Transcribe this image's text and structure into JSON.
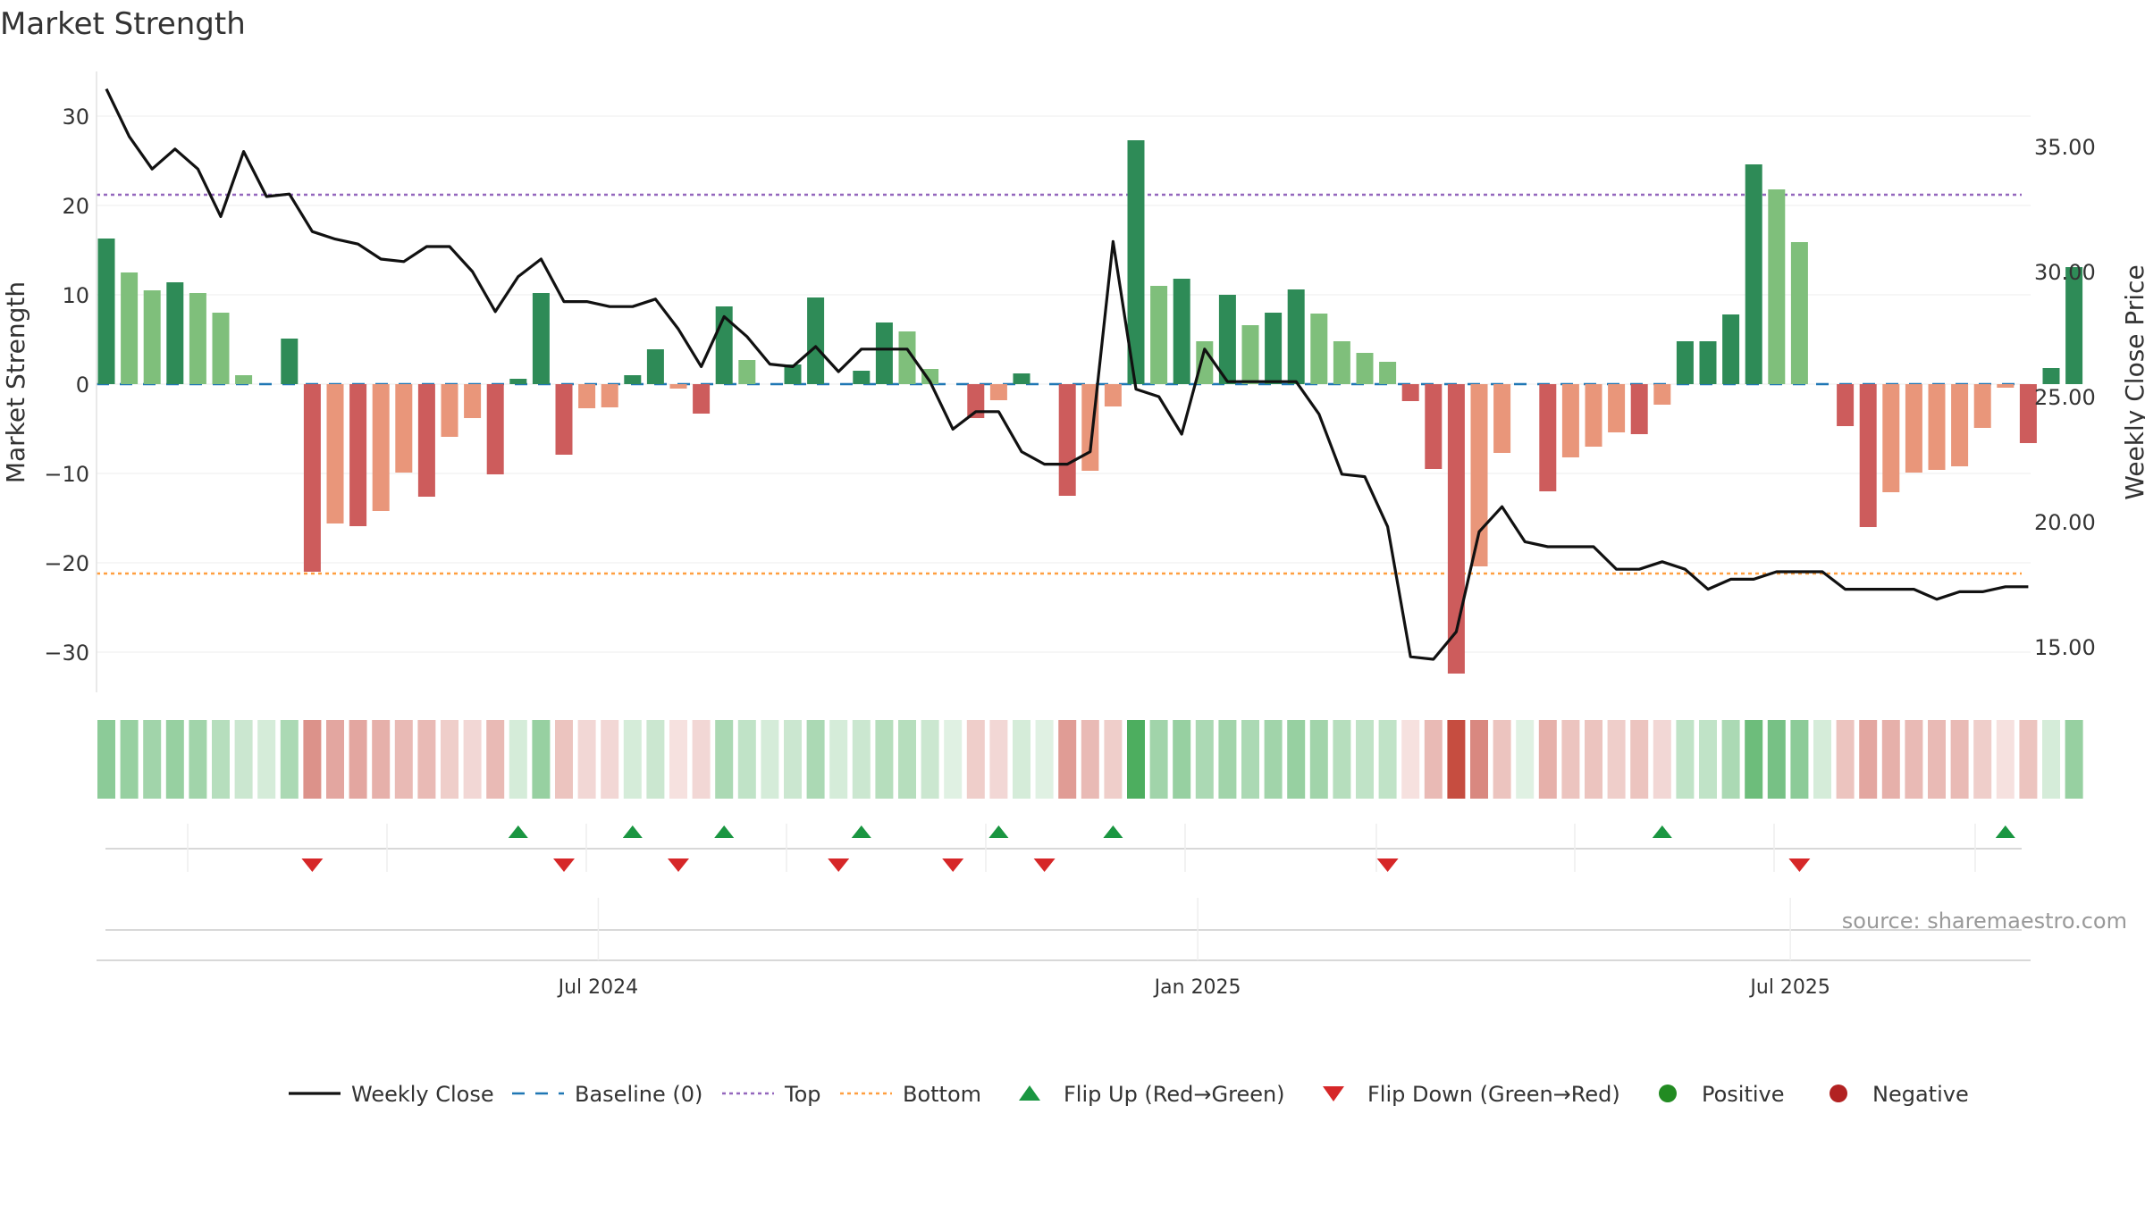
{
  "chart_data": {
    "type": "bar",
    "title": "Market Strength",
    "source": "source: sharemaestro.com",
    "y_left_label": "Market Strength",
    "y_right_label": "Weekly Close Price",
    "y_left_range": [
      -35,
      35
    ],
    "y_left_ticks": [
      30,
      20,
      10,
      0,
      -10,
      -20,
      -30
    ],
    "y_left_tick_labels": [
      "30",
      "20",
      "10",
      "0",
      "−10",
      "−20",
      "−30"
    ],
    "y_right_range": [
      13,
      38
    ],
    "y_right_ticks": [
      15,
      20,
      25,
      30,
      35
    ],
    "y_right_tick_labels": [
      "15.00",
      "20.00",
      "25.00",
      "30.00",
      "35.00"
    ],
    "x_tick_labels": [
      "Jul 2024",
      "Jan 2025",
      "Jul 2025"
    ],
    "x_tick_weeks": [
      21.5,
      47.7,
      73.6
    ],
    "top_level": 21.2,
    "bottom_level": -21.2,
    "colors": {
      "strong_positive": "#2e8b57",
      "positive": "#7fbf7b",
      "strong_negative": "#cd5c5c",
      "negative": "#e9967a",
      "line": "#111111",
      "baseline": "#1f77b4",
      "top": "#9467bd",
      "bottom": "#ff9f40",
      "flip_up": "#1a9641",
      "flip_down": "#d62728",
      "positive_dot": "#228b22",
      "negative_dot": "#b22222"
    },
    "strength": [
      16.3,
      12.5,
      10.5,
      11.4,
      10.2,
      8.0,
      1.0,
      0,
      5.1,
      -21.0,
      -15.6,
      -15.9,
      -14.2,
      -9.9,
      -12.6,
      -5.9,
      -3.8,
      -10.1,
      0.6,
      10.2,
      -7.9,
      -2.7,
      -2.6,
      1.0,
      3.9,
      -0.5,
      -3.3,
      8.7,
      2.7,
      0,
      2.2,
      9.7,
      0,
      1.5,
      6.9,
      5.9,
      1.7,
      0,
      -3.8,
      -1.8,
      1.2,
      0,
      -12.5,
      -9.7,
      -2.5,
      27.3,
      11.0,
      11.8,
      4.8,
      10.0,
      6.6,
      8.0,
      10.6,
      7.9,
      4.8,
      3.5,
      2.5,
      -1.9,
      -9.5,
      -32.4,
      -20.4,
      -7.7,
      0,
      -12.0,
      -8.2,
      -7.0,
      -5.4,
      -5.6,
      -2.3,
      4.8,
      4.8,
      7.8,
      24.6,
      21.8,
      15.9,
      0,
      -4.7,
      -16.0,
      -12.1,
      -9.9,
      -9.6,
      -9.2,
      -4.9,
      -0.4,
      -6.6,
      1.8,
      13.1
    ],
    "bar_strength_class": [
      "strong",
      "light",
      "light",
      "strong",
      "light",
      "light",
      "light",
      "strong",
      "strong",
      "strong",
      "light",
      "strong",
      "light",
      "light",
      "strong",
      "light",
      "light",
      "strong",
      "strong",
      "strong",
      "strong",
      "light",
      "light",
      "strong",
      "strong",
      "light",
      "strong",
      "strong",
      "light",
      "strong",
      "strong",
      "strong",
      "strong",
      "strong",
      "strong",
      "light",
      "light",
      "strong",
      "strong",
      "light",
      "strong",
      "strong",
      "strong",
      "light",
      "light",
      "strong",
      "light",
      "strong",
      "light",
      "strong",
      "light",
      "strong",
      "strong",
      "light",
      "light",
      "light",
      "light",
      "strong",
      "strong",
      "strong",
      "light",
      "light",
      "strong",
      "strong",
      "light",
      "light",
      "light",
      "strong",
      "light",
      "strong",
      "strong",
      "strong",
      "strong",
      "light",
      "light",
      "strong",
      "strong",
      "strong",
      "light",
      "light",
      "light",
      "light",
      "light",
      "light",
      "strong",
      "strong",
      "strong"
    ],
    "weekly_close": [
      37.3,
      35.4,
      34.1,
      34.9,
      34.1,
      32.2,
      34.8,
      33.0,
      33.1,
      31.6,
      31.3,
      31.1,
      30.5,
      30.4,
      31.0,
      31.0,
      30.0,
      28.4,
      29.8,
      30.5,
      28.8,
      28.8,
      28.6,
      28.6,
      28.9,
      27.7,
      26.2,
      28.2,
      27.4,
      26.3,
      26.2,
      27.0,
      26.0,
      26.9,
      26.9,
      26.9,
      25.6,
      23.7,
      24.4,
      24.4,
      22.8,
      22.3,
      22.3,
      22.8,
      31.2,
      25.3,
      25.0,
      23.5,
      26.9,
      25.6,
      25.6,
      25.6,
      25.6,
      24.3,
      21.9,
      21.8,
      19.8,
      14.6,
      14.5,
      15.6,
      19.6,
      20.6,
      19.2,
      19.0,
      19.0,
      19.0,
      18.1,
      18.1,
      18.4,
      18.1,
      17.3,
      17.7,
      17.7,
      18.0,
      18.0,
      18.0,
      17.3,
      17.3,
      17.3,
      17.3,
      16.9,
      17.2,
      17.2,
      17.4,
      17.4
    ],
    "heat_intensity": [
      0.55,
      0.5,
      0.45,
      0.5,
      0.45,
      0.35,
      0.25,
      0.2,
      0.4,
      0.55,
      0.45,
      0.45,
      0.4,
      0.35,
      0.35,
      0.25,
      0.2,
      0.35,
      0.2,
      0.5,
      0.3,
      0.2,
      0.2,
      0.2,
      0.25,
      0.15,
      0.2,
      0.4,
      0.3,
      0.2,
      0.25,
      0.4,
      0.2,
      0.25,
      0.35,
      0.35,
      0.25,
      0.15,
      0.25,
      0.2,
      0.2,
      0.15,
      0.5,
      0.35,
      0.25,
      0.85,
      0.45,
      0.5,
      0.4,
      0.45,
      0.4,
      0.45,
      0.5,
      0.45,
      0.35,
      0.3,
      0.3,
      0.15,
      0.35,
      0.9,
      0.6,
      0.3,
      0.15,
      0.4,
      0.3,
      0.3,
      0.25,
      0.3,
      0.2,
      0.3,
      0.3,
      0.4,
      0.7,
      0.65,
      0.55,
      0.2,
      0.3,
      0.45,
      0.4,
      0.35,
      0.35,
      0.35,
      0.25,
      0.15,
      0.3,
      0.2,
      0.5
    ],
    "flip_up_weeks": [
      18,
      23,
      27,
      33,
      39,
      44,
      68,
      83
    ],
    "flip_down_weeks": [
      9,
      20,
      25,
      32,
      37,
      41,
      56,
      74
    ],
    "legend": [
      {
        "label": "Weekly Close",
        "kind": "line",
        "color": "#111111"
      },
      {
        "label": "Baseline (0)",
        "kind": "dash",
        "color": "#1f77b4"
      },
      {
        "label": "Top",
        "kind": "dot",
        "color": "#9467bd"
      },
      {
        "label": "Bottom",
        "kind": "dot",
        "color": "#ff9f40"
      },
      {
        "label": "Flip Up (Red→Green)",
        "kind": "tri-up",
        "color": "#1a9641"
      },
      {
        "label": "Flip Down (Green→Red)",
        "kind": "tri-down",
        "color": "#d62728"
      },
      {
        "label": "Positive",
        "kind": "circle",
        "color": "#228b22"
      },
      {
        "label": "Negative",
        "kind": "circle",
        "color": "#b22222"
      }
    ]
  }
}
